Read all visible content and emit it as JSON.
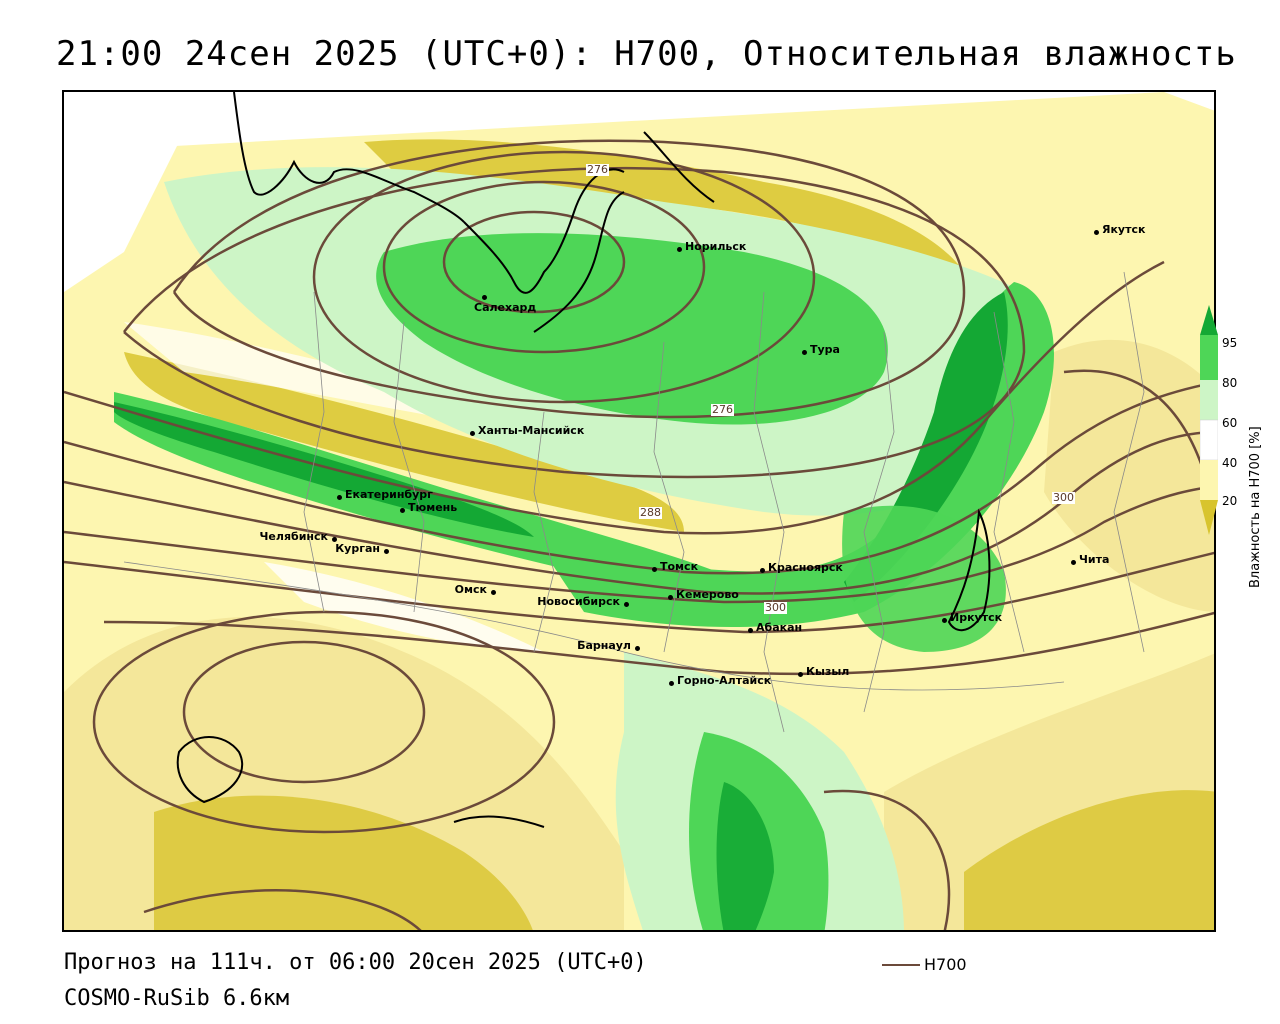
{
  "title": "21:00 24сен 2025 (UTC+0): H700, Относительная влажность",
  "colors": {
    "dry_light": "#fdf6b0",
    "dry": "#f4e79a",
    "dry_dark": "#d8c42e",
    "neutral": "#ffffff",
    "moist_light": "#cdf5c6",
    "moist": "#4ed657",
    "moist_dark": "#14a834",
    "contour": "#6b4a3a",
    "coast": "#000000"
  },
  "cities": [
    {
      "name": "Салехард",
      "label_side": "below"
    },
    {
      "name": "Норильск",
      "label_side": "right"
    },
    {
      "name": "Тура",
      "label_side": "right"
    },
    {
      "name": "Якутск",
      "label_side": "right"
    },
    {
      "name": "Ханты-Мансийск",
      "label_side": "right"
    },
    {
      "name": "Екатеринбург",
      "label_side": "right"
    },
    {
      "name": "Тюмень",
      "label_side": "right"
    },
    {
      "name": "Челябинск",
      "label_side": "left"
    },
    {
      "name": "Курган",
      "label_side": "left"
    },
    {
      "name": "Омск",
      "label_side": "left"
    },
    {
      "name": "Новосибирск",
      "label_side": "left"
    },
    {
      "name": "Томск",
      "label_side": "right"
    },
    {
      "name": "Кемерово",
      "label_side": "right"
    },
    {
      "name": "Красноярск",
      "label_side": "right"
    },
    {
      "name": "Барнаул",
      "label_side": "left"
    },
    {
      "name": "Абакан",
      "label_side": "right"
    },
    {
      "name": "Горно-Алтайск",
      "label_side": "right"
    },
    {
      "name": "Кызыл",
      "label_side": "right"
    },
    {
      "name": "Иркутск",
      "label_side": "right"
    },
    {
      "name": "Чита",
      "label_side": "right"
    }
  ],
  "contour_labels": [
    "276",
    "276",
    "288",
    "300",
    "300"
  ],
  "legend": {
    "ticks": [
      "95",
      "80",
      "60",
      "40",
      "20"
    ],
    "caption": "Влажность на H700 [%]"
  },
  "footer": {
    "forecast": "Прогноз на 111ч. от 06:00 20сен 2025 (UTC+0)",
    "model": "COSMO-RuSib 6.6км",
    "series_label": "H700"
  }
}
